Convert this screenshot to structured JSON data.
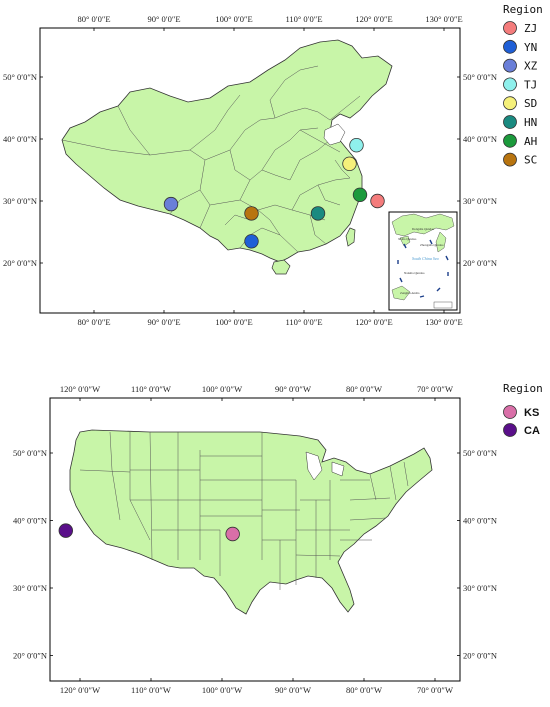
{
  "china": {
    "top_ticks": [
      "80° 0′0″E",
      "90° 0′0″E",
      "100° 0′0″E",
      "110° 0′0″E",
      "120° 0′0″E",
      "130° 0′0″E"
    ],
    "bottom_ticks": [
      "80° 0′0″E",
      "90° 0′0″E",
      "100° 0′0″E",
      "110° 0′0″E",
      "120° 0′0″E",
      "130° 0′0″E"
    ],
    "left_ticks": [
      "50° 0′0″N",
      "40° 0′0″N",
      "30° 0′0″N",
      "20° 0′0″N"
    ],
    "right_ticks": [
      "50° 0′0″N",
      "40° 0′0″N",
      "30° 0′0″N",
      "20° 0′0″N"
    ],
    "legend_title": "Region",
    "regions": [
      {
        "code": "ZJ",
        "color": "#f47c7c"
      },
      {
        "code": "YN",
        "color": "#1f5fd6"
      },
      {
        "code": "XZ",
        "color": "#6a7fd8"
      },
      {
        "code": "TJ",
        "color": "#8ff0ec"
      },
      {
        "code": "SD",
        "color": "#f5f07a"
      },
      {
        "code": "HN",
        "color": "#1a8a80"
      },
      {
        "code": "AH",
        "color": "#1c9a3c"
      },
      {
        "code": "SC",
        "color": "#b8740f"
      }
    ],
    "points": [
      {
        "code": "ZJ",
        "lon": 120.5,
        "lat": 30.0
      },
      {
        "code": "YN",
        "lon": 102.5,
        "lat": 23.5
      },
      {
        "code": "XZ",
        "lon": 91.0,
        "lat": 29.5
      },
      {
        "code": "TJ",
        "lon": 117.5,
        "lat": 39.0
      },
      {
        "code": "SD",
        "lon": 116.5,
        "lat": 36.0
      },
      {
        "code": "HN",
        "lon": 112.0,
        "lat": 28.0
      },
      {
        "code": "AH",
        "lon": 118.0,
        "lat": 31.0
      },
      {
        "code": "SC",
        "lon": 102.5,
        "lat": 28.0
      }
    ],
    "land_color": "#c8f5a8",
    "inset_labels": [
      "Dongsha Qundao",
      "Xisha Qundao",
      "Zhongsha Qundao",
      "Nansha Qundao",
      "Zengmu Ansha",
      "South China Sea"
    ]
  },
  "usa": {
    "top_ticks": [
      "120° 0′0″W",
      "110° 0′0″W",
      "100° 0′0″W",
      "90° 0′0″W",
      "80° 0′0″W",
      "70° 0′0″W"
    ],
    "bottom_ticks": [
      "120° 0′0″W",
      "110° 0′0″W",
      "100° 0′0″W",
      "90° 0′0″W",
      "80° 0′0″W",
      "70° 0′0″W"
    ],
    "left_ticks": [
      "50° 0′0″N",
      "40° 0′0″N",
      "30° 0′0″N",
      "20° 0′0″N"
    ],
    "right_ticks": [
      "50° 0′0″N",
      "40° 0′0″N",
      "30° 0′0″N",
      "20° 0′0″N"
    ],
    "legend_title": "Region",
    "regions": [
      {
        "code": "KS",
        "color": "#d96fa8"
      },
      {
        "code": "CA",
        "color": "#5a0f8a"
      }
    ],
    "points": [
      {
        "code": "KS",
        "lon": -98.5,
        "lat": 38.0
      },
      {
        "code": "CA",
        "lon": -122.0,
        "lat": 38.5
      }
    ],
    "land_color": "#c8f5a8"
  }
}
